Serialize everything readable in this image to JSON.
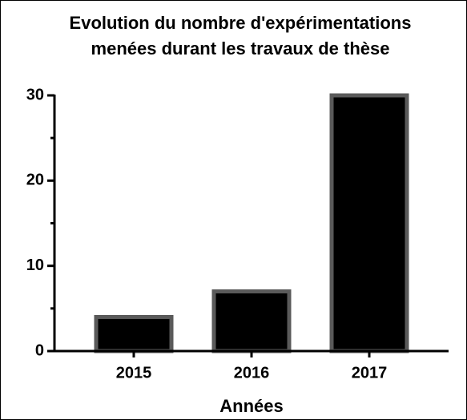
{
  "chart_data": {
    "type": "bar",
    "title": [
      "Evolution du nombre d'expérimentations",
      "menées durant les travaux de thèse"
    ],
    "xlabel": "Années",
    "categories": [
      "2015",
      "2016",
      "2017"
    ],
    "values": [
      4,
      7,
      30
    ],
    "color": "#000000",
    "edgecolor": "#5a5a5a",
    "ylim": [
      0,
      30
    ],
    "yticks": [
      0,
      10,
      20,
      30
    ],
    "minor_yticks": [
      5,
      15,
      25
    ],
    "grid": false
  }
}
